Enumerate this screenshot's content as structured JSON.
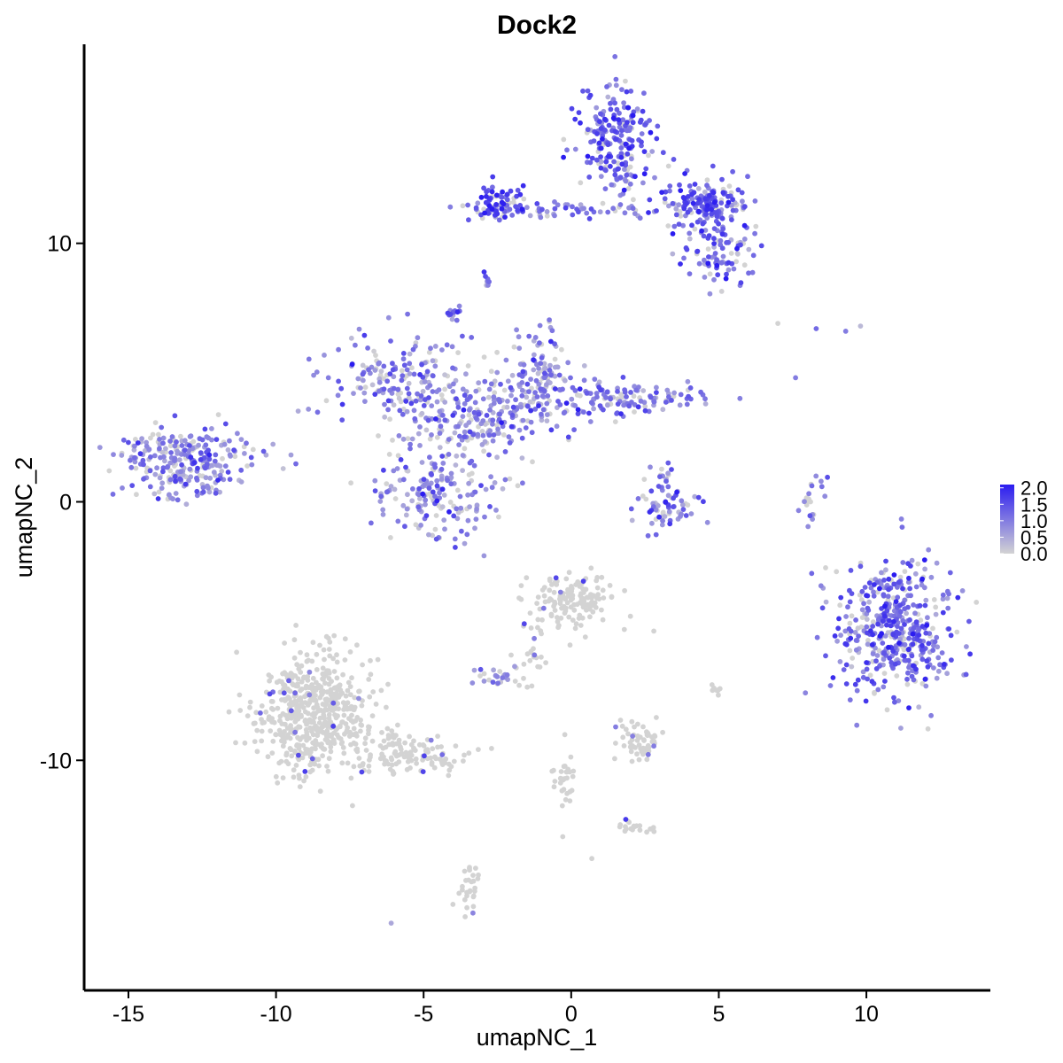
{
  "chart_data": {
    "type": "scatter",
    "title": "Dock2",
    "xlabel": "umapNC_1",
    "ylabel": "umapNC_2",
    "xlim": [
      -16.5,
      14.2
    ],
    "ylim": [
      -18.9,
      17.7
    ],
    "x_ticks": [
      -15,
      -10,
      -5,
      0,
      5,
      10
    ],
    "x_tick_labels": [
      "-15",
      "-10",
      "-5",
      "0",
      "5",
      "10"
    ],
    "y_ticks": [
      -10,
      0,
      10
    ],
    "y_tick_labels": [
      "-10",
      "0",
      "10"
    ],
    "grid": false,
    "color_scale": {
      "low_color": "#d3d3d3",
      "high_color": "#2b1cf0",
      "min": 0,
      "max": 2.1,
      "ticks": [
        0.0,
        0.5,
        1.0,
        1.5,
        2.0
      ],
      "tick_labels": [
        "0.0",
        "0.5",
        "1.0",
        "1.5",
        "2.0"
      ],
      "legend_position": "right"
    },
    "clusters": [
      {
        "center": [
          -13.1,
          1.5
        ],
        "spread": [
          1.1,
          0.7
        ],
        "n": 280,
        "mean_expr": 0.9
      },
      {
        "center": [
          -4.5,
          0.3
        ],
        "spread": [
          1.0,
          0.9
        ],
        "n": 180,
        "mean_expr": 0.8
      },
      {
        "center": [
          -5.8,
          4.8
        ],
        "spread": [
          1.2,
          0.9
        ],
        "n": 180,
        "mean_expr": 0.9
      },
      {
        "center": [
          -3.0,
          3.3
        ],
        "spread": [
          1.2,
          0.9
        ],
        "n": 220,
        "mean_expr": 0.9
      },
      {
        "center": [
          -1.0,
          5.0
        ],
        "spread": [
          0.6,
          0.8
        ],
        "n": 100,
        "mean_expr": 0.9
      },
      {
        "center": [
          1.5,
          4.0
        ],
        "spread": [
          1.5,
          0.4
        ],
        "n": 140,
        "mean_expr": 1.0
      },
      {
        "center": [
          -2.5,
          11.5
        ],
        "spread": [
          0.5,
          0.3
        ],
        "n": 80,
        "mean_expr": 1.5
      },
      {
        "center": [
          0.0,
          11.3
        ],
        "spread": [
          1.5,
          0.2
        ],
        "n": 50,
        "mean_expr": 1.0
      },
      {
        "center": [
          1.5,
          14.0
        ],
        "spread": [
          0.7,
          1.1
        ],
        "n": 220,
        "mean_expr": 1.3
      },
      {
        "center": [
          4.5,
          11.5
        ],
        "spread": [
          0.8,
          0.5
        ],
        "n": 170,
        "mean_expr": 1.3
      },
      {
        "center": [
          5.0,
          9.5
        ],
        "spread": [
          0.6,
          0.6
        ],
        "n": 90,
        "mean_expr": 1.2
      },
      {
        "center": [
          3.2,
          -0.3
        ],
        "spread": [
          0.6,
          0.4
        ],
        "n": 60,
        "mean_expr": 1.2
      },
      {
        "center": [
          3.1,
          0.9
        ],
        "spread": [
          0.2,
          0.3
        ],
        "n": 15,
        "mean_expr": 1.2
      },
      {
        "center": [
          8.1,
          0.3
        ],
        "spread": [
          0.2,
          0.5
        ],
        "n": 20,
        "mean_expr": 0.7
      },
      {
        "center": [
          10.9,
          -5.0
        ],
        "spread": [
          1.0,
          1.3
        ],
        "n": 450,
        "mean_expr": 1.2
      },
      {
        "center": [
          -4.0,
          7.2
        ],
        "spread": [
          0.15,
          0.15
        ],
        "n": 15,
        "mean_expr": 1.2
      },
      {
        "center": [
          -2.8,
          8.6
        ],
        "spread": [
          0.1,
          0.2
        ],
        "n": 8,
        "mean_expr": 1.0
      },
      {
        "center": [
          0.0,
          -3.9
        ],
        "spread": [
          0.7,
          0.6
        ],
        "n": 140,
        "mean_expr": 0.05
      },
      {
        "center": [
          -8.7,
          -8.2
        ],
        "spread": [
          1.0,
          1.2
        ],
        "n": 550,
        "mean_expr": 0.02
      },
      {
        "center": [
          -5.5,
          -9.8
        ],
        "spread": [
          0.9,
          0.4
        ],
        "n": 120,
        "mean_expr": 0.02
      },
      {
        "center": [
          2.3,
          -9.3
        ],
        "spread": [
          0.4,
          0.4
        ],
        "n": 60,
        "mean_expr": 0.05
      },
      {
        "center": [
          -2.5,
          -6.8
        ],
        "spread": [
          0.4,
          0.2
        ],
        "n": 25,
        "mean_expr": 0.8
      },
      {
        "center": [
          -3.5,
          -15.0
        ],
        "spread": [
          0.2,
          0.5
        ],
        "n": 30,
        "mean_expr": 0.05
      },
      {
        "center": [
          -0.3,
          -11.0
        ],
        "spread": [
          0.2,
          0.6
        ],
        "n": 30,
        "mean_expr": 0.02
      },
      {
        "center": [
          2.2,
          -12.6
        ],
        "spread": [
          0.3,
          0.15
        ],
        "n": 20,
        "mean_expr": 0.02
      },
      {
        "center": [
          -1.3,
          -5.8
        ],
        "spread": [
          0.3,
          0.7
        ],
        "n": 25,
        "mean_expr": 0.02
      },
      {
        "center": [
          4.9,
          -7.3
        ],
        "spread": [
          0.1,
          0.15
        ],
        "n": 8,
        "mean_expr": 0.02
      }
    ],
    "isolated_points": [
      {
        "x": 7.0,
        "y": 6.9,
        "expr": 0.0
      },
      {
        "x": 8.3,
        "y": 6.7,
        "expr": 1.2
      },
      {
        "x": 9.3,
        "y": 6.6,
        "expr": 1.0
      },
      {
        "x": 9.8,
        "y": 6.8,
        "expr": 0.3
      },
      {
        "x": 7.6,
        "y": 4.8,
        "expr": 1.0
      },
      {
        "x": -6.1,
        "y": -16.3,
        "expr": 0.5
      },
      {
        "x": 0.7,
        "y": -13.8,
        "expr": 0.0
      },
      {
        "x": 2.8,
        "y": -5.0,
        "expr": 0.0
      }
    ]
  }
}
